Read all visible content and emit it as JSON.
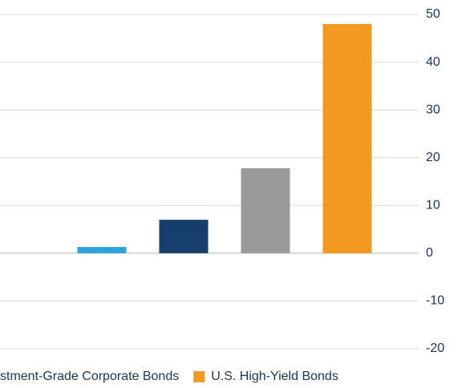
{
  "chart_data": {
    "type": "bar",
    "categories": [
      null,
      null,
      null,
      null
    ],
    "values": [
      1.3,
      7,
      17.8,
      48
    ],
    "colors": [
      "#2ba3dd",
      "#163f6e",
      "#9a9a9a",
      "#f29a1f"
    ],
    "ylim": [
      -20,
      50
    ],
    "yticks": [
      -20,
      -10,
      0,
      10,
      20,
      30,
      40,
      50
    ],
    "grid": true,
    "y_axis_side": "right",
    "legend_position": "bottom",
    "legend": [
      {
        "name": "stment-Grade Corporate Bonds"
      },
      {
        "name": "U.S. High-Yield Bonds",
        "color": "#f29a1f"
      }
    ]
  }
}
